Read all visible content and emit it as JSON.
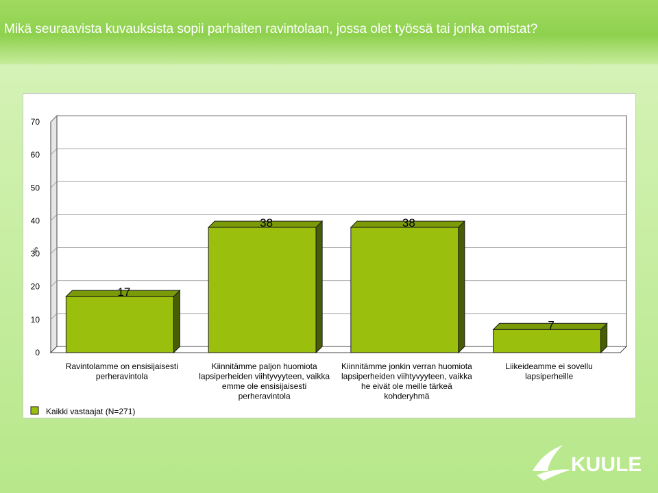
{
  "header": {
    "title": "Mikä seuraavista kuvauksista sopii parhaiten ravintolaan, jossa olet työssä tai jonka omistat?"
  },
  "colors": {
    "bar_front": "#9abf0c",
    "bar_top": "#7a9a08",
    "bar_side": "#475e05",
    "header_bg": "#8fd14f",
    "logo": "#ffffff"
  },
  "chart_data": {
    "type": "bar",
    "ylabel": "%",
    "ylim": [
      0,
      70
    ],
    "yticks": [
      0,
      10,
      20,
      30,
      40,
      50,
      60,
      70
    ],
    "grid": true,
    "legend_position": "bottom-left",
    "categories": [
      [
        "Ravintolamme on ensisijaisesti",
        "perheravintola"
      ],
      [
        "Kiinnitämme paljon huomiota",
        "lapsiperheiden viihtyvyyteen, vaikka",
        "emme ole ensisijaisesti",
        "perheravintola"
      ],
      [
        "Kiinnitämme jonkin verran huomiota",
        "lapsiperheiden viihtyvyyteen, vaikka",
        "he eivät ole meille tärkeä",
        "kohderyhmä"
      ],
      [
        "Liikeideamme ei sovellu",
        "lapsiperheille"
      ]
    ],
    "series": [
      {
        "name": "Kaikki vastaajat (N=271)",
        "values": [
          17,
          38,
          38,
          7
        ]
      }
    ]
  },
  "logo": {
    "text": "KUULE",
    "icon": "swoosh-icon"
  }
}
